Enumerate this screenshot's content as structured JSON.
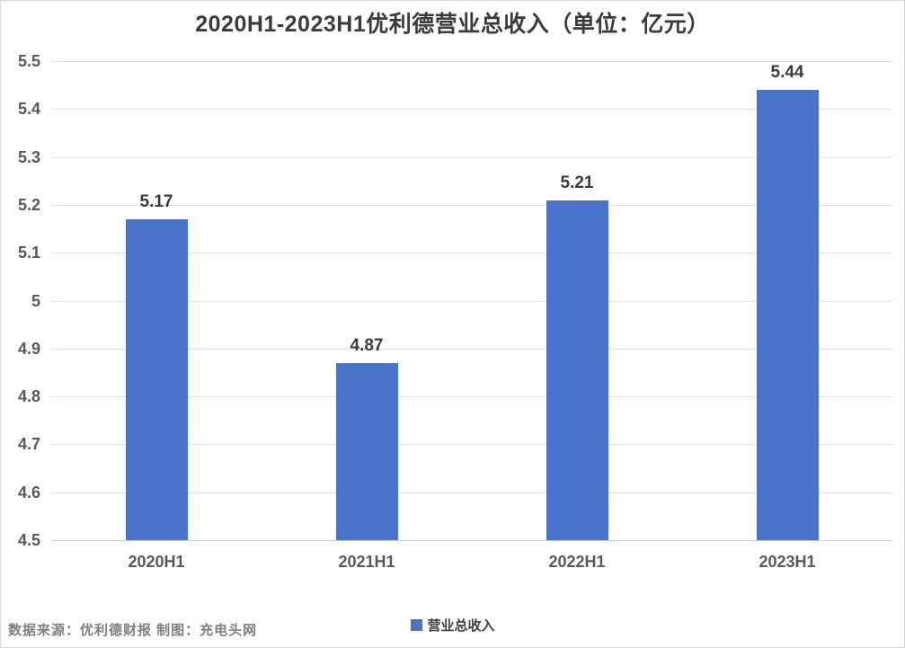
{
  "chart": {
    "title": "2020H1-2023H1优利德营业总收入（单位：亿元）",
    "footer": "数据来源：优利德财报 制图：充电头网",
    "legend": {
      "label": "营业总收入",
      "swatch_icon": "legend-swatch"
    }
  },
  "colors": {
    "bar": "#4A74C9",
    "gridline": "#E2E2E2",
    "axis_line": "#C9C9C9",
    "title_text": "#3B3B3B",
    "tick_text": "#595959",
    "footer_text": "#7F7F7F"
  },
  "chart_data": {
    "type": "bar",
    "title": "2020H1-2023H1优利德营业总收入（单位：亿元）",
    "series_name": "营业总收入",
    "categories": [
      "2020H1",
      "2021H1",
      "2022H1",
      "2023H1"
    ],
    "values": [
      5.17,
      4.87,
      5.21,
      5.44
    ],
    "value_labels": [
      "5.17",
      "4.87",
      "5.21",
      "5.44"
    ],
    "xlabel": "",
    "ylabel": "",
    "ylim": [
      4.5,
      5.5
    ],
    "y_tick_labels": [
      "5.5",
      "5.4",
      "5.3",
      "5.2",
      "5.1",
      "5",
      "4.9",
      "4.8",
      "4.7",
      "4.6",
      "4.5"
    ],
    "grid": true,
    "legend_position": "bottom",
    "bar_color": "#4A74C9"
  }
}
